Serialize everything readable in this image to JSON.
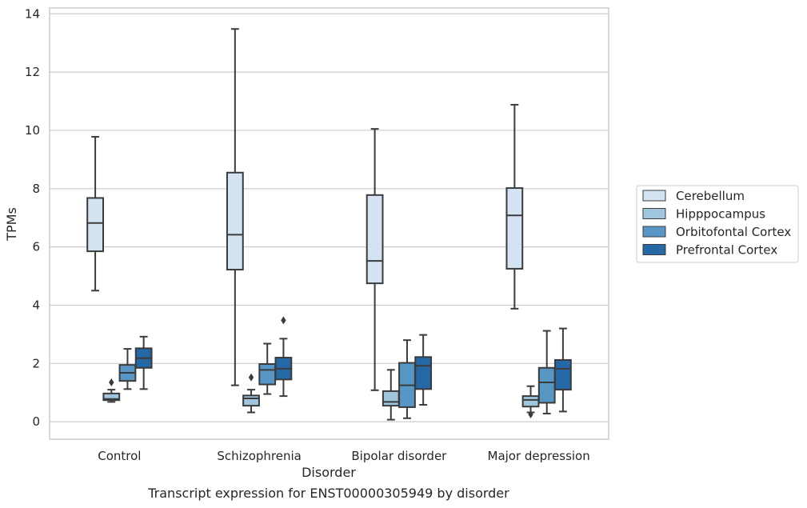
{
  "chart_data": {
    "type": "box",
    "title": "Transcript expression for ENST00000305949 by disorder",
    "xlabel": "Disorder",
    "ylabel": "TPMs",
    "ylim": [
      -0.6,
      14.2
    ],
    "yticks": [
      0,
      2,
      4,
      6,
      8,
      10,
      12,
      14
    ],
    "grid": "horizontal",
    "legend_position": "right",
    "categories": [
      "Control",
      "Schizophrenia",
      "Bipolar disorder",
      "Major depression"
    ],
    "series": [
      {
        "name": "Cerebellum",
        "color": "#d4e3f2",
        "boxes": [
          {
            "whislo": 4.5,
            "q1": 5.85,
            "med": 6.82,
            "q3": 7.68,
            "whishi": 9.78,
            "fliers": []
          },
          {
            "whislo": 1.25,
            "q1": 5.22,
            "med": 6.42,
            "q3": 8.55,
            "whishi": 13.48,
            "fliers": []
          },
          {
            "whislo": 1.08,
            "q1": 4.75,
            "med": 5.52,
            "q3": 7.78,
            "whishi": 10.05,
            "fliers": []
          },
          {
            "whislo": 3.88,
            "q1": 5.25,
            "med": 7.08,
            "q3": 8.02,
            "whishi": 10.88,
            "fliers": []
          }
        ]
      },
      {
        "name": "Hipppocampus",
        "color": "#9fc5df",
        "boxes": [
          {
            "whislo": 0.68,
            "q1": 0.74,
            "med": 0.78,
            "q3": 0.97,
            "whishi": 1.1,
            "fliers": [
              1.35
            ]
          },
          {
            "whislo": 0.32,
            "q1": 0.55,
            "med": 0.8,
            "q3": 0.9,
            "whishi": 1.1,
            "fliers": [
              1.52
            ]
          },
          {
            "whislo": 0.07,
            "q1": 0.55,
            "med": 0.68,
            "q3": 1.05,
            "whishi": 1.78,
            "fliers": []
          },
          {
            "whislo": 0.32,
            "q1": 0.52,
            "med": 0.75,
            "q3": 0.88,
            "whishi": 1.22,
            "fliers": [
              0.25
            ]
          }
        ]
      },
      {
        "name": "Orbitofontal Cortex",
        "color": "#5897c5",
        "boxes": [
          {
            "whislo": 1.12,
            "q1": 1.4,
            "med": 1.68,
            "q3": 1.95,
            "whishi": 2.5,
            "fliers": []
          },
          {
            "whislo": 0.95,
            "q1": 1.28,
            "med": 1.78,
            "q3": 1.98,
            "whishi": 2.68,
            "fliers": []
          },
          {
            "whislo": 0.12,
            "q1": 0.5,
            "med": 1.25,
            "q3": 2.02,
            "whishi": 2.8,
            "fliers": []
          },
          {
            "whislo": 0.28,
            "q1": 0.65,
            "med": 1.35,
            "q3": 1.85,
            "whishi": 3.12,
            "fliers": []
          }
        ]
      },
      {
        "name": "Prefrontal Cortex",
        "color": "#2469a6",
        "boxes": [
          {
            "whislo": 1.12,
            "q1": 1.85,
            "med": 2.18,
            "q3": 2.52,
            "whishi": 2.92,
            "fliers": []
          },
          {
            "whislo": 0.88,
            "q1": 1.45,
            "med": 1.82,
            "q3": 2.2,
            "whishi": 2.85,
            "fliers": [
              3.48
            ]
          },
          {
            "whislo": 0.58,
            "q1": 1.12,
            "med": 1.92,
            "q3": 2.22,
            "whishi": 2.98,
            "fliers": []
          },
          {
            "whislo": 0.35,
            "q1": 1.1,
            "med": 1.82,
            "q3": 2.12,
            "whishi": 3.2,
            "fliers": []
          }
        ]
      }
    ]
  }
}
